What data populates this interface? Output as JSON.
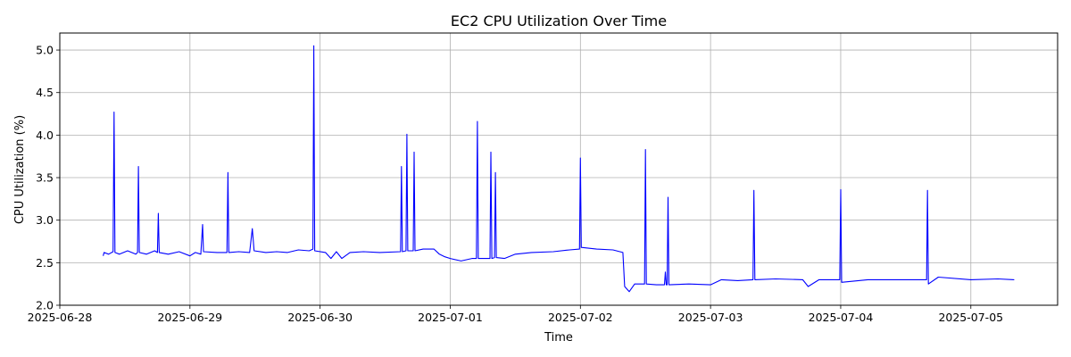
{
  "chart_data": {
    "type": "line",
    "title": "EC2 CPU Utilization Over Time",
    "xlabel": "Time",
    "ylabel": "CPU Utilization (%)",
    "xlim": [
      "2025-06-28 00:00",
      "2025-07-05 16:00"
    ],
    "ylim": [
      2.0,
      5.2
    ],
    "x_ticks": [
      "2025-06-28",
      "2025-06-29",
      "2025-06-30",
      "2025-07-01",
      "2025-07-02",
      "2025-07-03",
      "2025-07-04",
      "2025-07-05"
    ],
    "y_ticks": [
      "2.0",
      "2.5",
      "3.0",
      "3.5",
      "4.0",
      "4.5",
      "5.0"
    ],
    "grid": true,
    "series": [
      {
        "color": "#0000ff",
        "points": [
          [
            "2025-06-28 08:00",
            2.58
          ],
          [
            "2025-06-28 08:10",
            2.62
          ],
          [
            "2025-06-28 09:00",
            2.6
          ],
          [
            "2025-06-28 09:50",
            2.63
          ],
          [
            "2025-06-28 10:00",
            4.27
          ],
          [
            "2025-06-28 10:10",
            2.62
          ],
          [
            "2025-06-28 11:00",
            2.6
          ],
          [
            "2025-06-28 12:30",
            2.64
          ],
          [
            "2025-06-28 14:00",
            2.6
          ],
          [
            "2025-06-28 14:20",
            2.62
          ],
          [
            "2025-06-28 14:30",
            3.63
          ],
          [
            "2025-06-28 14:40",
            2.62
          ],
          [
            "2025-06-28 16:00",
            2.6
          ],
          [
            "2025-06-28 17:30",
            2.64
          ],
          [
            "2025-06-28 18:00",
            2.62
          ],
          [
            "2025-06-28 18:10",
            3.08
          ],
          [
            "2025-06-28 18:20",
            2.62
          ],
          [
            "2025-06-28 20:00",
            2.6
          ],
          [
            "2025-06-28 22:00",
            2.63
          ],
          [
            "2025-06-29 00:00",
            2.58
          ],
          [
            "2025-06-29 01:00",
            2.62
          ],
          [
            "2025-06-29 02:00",
            2.6
          ],
          [
            "2025-06-29 02:20",
            2.95
          ],
          [
            "2025-06-29 02:30",
            2.63
          ],
          [
            "2025-06-29 05:00",
            2.62
          ],
          [
            "2025-06-29 06:50",
            2.62
          ],
          [
            "2025-06-29 07:00",
            3.56
          ],
          [
            "2025-06-29 07:10",
            2.62
          ],
          [
            "2025-06-29 09:00",
            2.63
          ],
          [
            "2025-06-29 11:00",
            2.62
          ],
          [
            "2025-06-29 11:30",
            2.9
          ],
          [
            "2025-06-29 11:50",
            2.64
          ],
          [
            "2025-06-29 14:00",
            2.62
          ],
          [
            "2025-06-29 16:00",
            2.63
          ],
          [
            "2025-06-29 18:00",
            2.62
          ],
          [
            "2025-06-29 20:00",
            2.65
          ],
          [
            "2025-06-29 22:00",
            2.64
          ],
          [
            "2025-06-29 22:40",
            2.66
          ],
          [
            "2025-06-29 22:50",
            5.05
          ],
          [
            "2025-06-29 23:00",
            2.64
          ],
          [
            "2025-06-30 01:00",
            2.62
          ],
          [
            "2025-06-30 02:00",
            2.55
          ],
          [
            "2025-06-30 03:00",
            2.63
          ],
          [
            "2025-06-30 04:00",
            2.55
          ],
          [
            "2025-06-30 05:30",
            2.62
          ],
          [
            "2025-06-30 08:00",
            2.63
          ],
          [
            "2025-06-30 11:00",
            2.62
          ],
          [
            "2025-06-30 14:50",
            2.63
          ],
          [
            "2025-06-30 15:00",
            3.63
          ],
          [
            "2025-06-30 15:10",
            2.63
          ],
          [
            "2025-06-30 15:50",
            2.64
          ],
          [
            "2025-06-30 16:00",
            4.01
          ],
          [
            "2025-06-30 16:10",
            2.64
          ],
          [
            "2025-06-30 17:10",
            2.64
          ],
          [
            "2025-06-30 17:20",
            3.8
          ],
          [
            "2025-06-30 17:30",
            2.64
          ],
          [
            "2025-06-30 19:00",
            2.66
          ],
          [
            "2025-06-30 21:00",
            2.66
          ],
          [
            "2025-06-30 22:00",
            2.6
          ],
          [
            "2025-06-30 23:00",
            2.57
          ],
          [
            "2025-07-01 00:00",
            2.55
          ],
          [
            "2025-07-01 02:00",
            2.52
          ],
          [
            "2025-07-01 04:00",
            2.55
          ],
          [
            "2025-07-01 04:50",
            2.55
          ],
          [
            "2025-07-01 05:00",
            4.16
          ],
          [
            "2025-07-01 05:10",
            2.55
          ],
          [
            "2025-07-01 07:20",
            2.55
          ],
          [
            "2025-07-01 07:30",
            3.8
          ],
          [
            "2025-07-01 07:40",
            2.55
          ],
          [
            "2025-07-01 08:10",
            2.56
          ],
          [
            "2025-07-01 08:20",
            3.56
          ],
          [
            "2025-07-01 08:30",
            2.56
          ],
          [
            "2025-07-01 10:00",
            2.55
          ],
          [
            "2025-07-01 12:00",
            2.6
          ],
          [
            "2025-07-01 15:00",
            2.62
          ],
          [
            "2025-07-01 19:00",
            2.63
          ],
          [
            "2025-07-01 22:00",
            2.65
          ],
          [
            "2025-07-01 23:50",
            2.66
          ],
          [
            "2025-07-02 00:00",
            3.73
          ],
          [
            "2025-07-02 00:10",
            2.68
          ],
          [
            "2025-07-02 03:00",
            2.66
          ],
          [
            "2025-07-02 06:00",
            2.65
          ],
          [
            "2025-07-02 07:50",
            2.62
          ],
          [
            "2025-07-02 08:10",
            2.22
          ],
          [
            "2025-07-02 09:00",
            2.16
          ],
          [
            "2025-07-02 10:00",
            2.25
          ],
          [
            "2025-07-02 11:50",
            2.25
          ],
          [
            "2025-07-02 12:00",
            3.83
          ],
          [
            "2025-07-02 12:10",
            2.25
          ],
          [
            "2025-07-02 14:00",
            2.24
          ],
          [
            "2025-07-02 15:30",
            2.24
          ],
          [
            "2025-07-02 15:40",
            2.39
          ],
          [
            "2025-07-02 15:50",
            2.24
          ],
          [
            "2025-07-02 16:00",
            2.24
          ],
          [
            "2025-07-02 16:10",
            3.27
          ],
          [
            "2025-07-02 16:20",
            2.24
          ],
          [
            "2025-07-02 20:00",
            2.25
          ],
          [
            "2025-07-03 00:00",
            2.24
          ],
          [
            "2025-07-03 02:00",
            2.3
          ],
          [
            "2025-07-03 05:00",
            2.29
          ],
          [
            "2025-07-03 07:50",
            2.3
          ],
          [
            "2025-07-03 08:00",
            3.35
          ],
          [
            "2025-07-03 08:10",
            2.3
          ],
          [
            "2025-07-03 12:00",
            2.31
          ],
          [
            "2025-07-03 17:00",
            2.3
          ],
          [
            "2025-07-03 18:00",
            2.22
          ],
          [
            "2025-07-03 20:00",
            2.3
          ],
          [
            "2025-07-03 23:50",
            2.3
          ],
          [
            "2025-07-04 00:00",
            3.36
          ],
          [
            "2025-07-04 00:10",
            2.27
          ],
          [
            "2025-07-04 05:00",
            2.3
          ],
          [
            "2025-07-04 11:00",
            2.3
          ],
          [
            "2025-07-04 15:50",
            2.3
          ],
          [
            "2025-07-04 16:00",
            3.35
          ],
          [
            "2025-07-04 16:10",
            2.25
          ],
          [
            "2025-07-04 18:00",
            2.33
          ],
          [
            "2025-07-05 00:00",
            2.3
          ],
          [
            "2025-07-05 05:00",
            2.31
          ],
          [
            "2025-07-05 08:00",
            2.3
          ]
        ]
      }
    ]
  }
}
